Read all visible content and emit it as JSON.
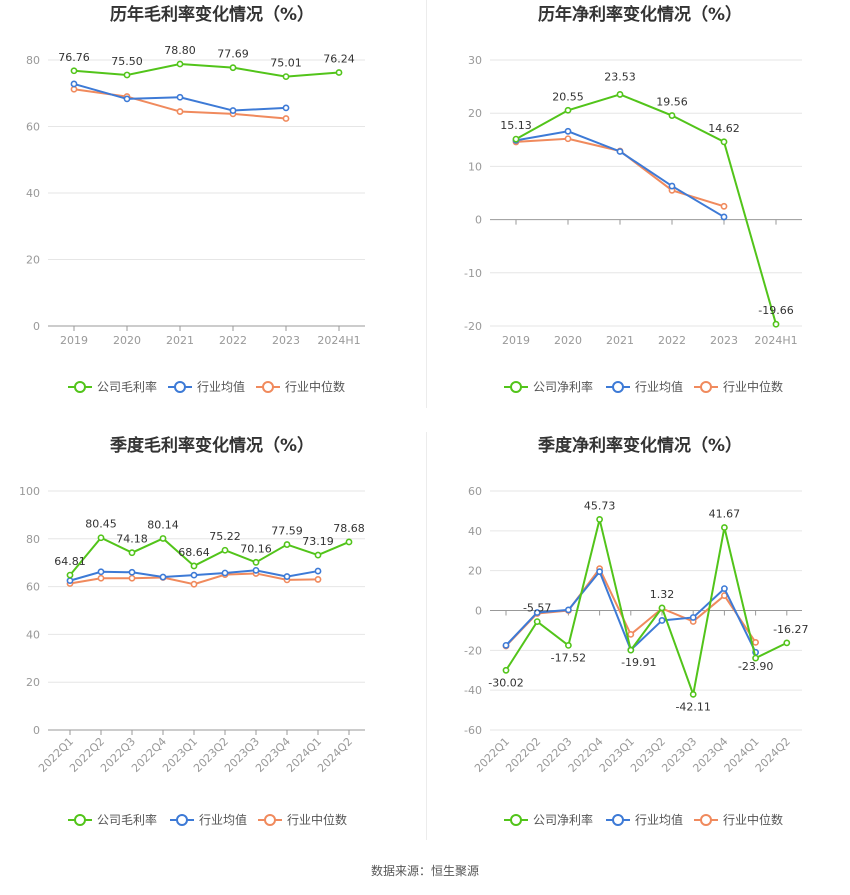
{
  "source": "数据来源：恒生聚源",
  "charts": [
    {
      "id": "annual-gross",
      "type": "line",
      "title": "历年毛利率变化情况（%）",
      "categories": [
        "2019",
        "2020",
        "2021",
        "2022",
        "2023",
        "2024H1"
      ],
      "ylim": [
        0,
        80
      ],
      "yticks": [
        0,
        20,
        40,
        60,
        80
      ],
      "rotate_x": false,
      "series": [
        {
          "name": "公司毛利率",
          "color": "#52c41a",
          "values": [
            76.76,
            75.5,
            78.8,
            77.69,
            75.01,
            76.24
          ],
          "labels": [
            "76.76",
            "75.50",
            "78.80",
            "77.69",
            "75.01",
            "76.24"
          ]
        },
        {
          "name": "行业均值",
          "color": "#3d7ad6",
          "values": [
            72.8,
            68.3,
            68.8,
            64.8,
            65.6,
            null
          ],
          "labels": []
        },
        {
          "name": "行业中位数",
          "color": "#f08a5d",
          "values": [
            71.2,
            69.0,
            64.5,
            63.8,
            62.4,
            null
          ],
          "labels": []
        }
      ]
    },
    {
      "id": "annual-net",
      "type": "line",
      "title": "历年净利率变化情况（%）",
      "categories": [
        "2019",
        "2020",
        "2021",
        "2022",
        "2023",
        "2024H1"
      ],
      "ylim": [
        -20,
        30
      ],
      "yticks": [
        -20,
        -10,
        0,
        10,
        20,
        30
      ],
      "rotate_x": false,
      "series": [
        {
          "name": "公司净利率",
          "color": "#52c41a",
          "values": [
            15.13,
            20.55,
            23.53,
            19.56,
            14.62,
            -19.66
          ],
          "labels": [
            "15.13",
            "20.55",
            "23.53",
            "19.56",
            "14.62",
            "-19.66"
          ]
        },
        {
          "name": "行业均值",
          "color": "#3d7ad6",
          "values": [
            14.9,
            16.6,
            12.8,
            6.3,
            0.5,
            null
          ],
          "labels": []
        },
        {
          "name": "行业中位数",
          "color": "#f08a5d",
          "values": [
            14.6,
            15.2,
            12.9,
            5.5,
            2.5,
            null
          ],
          "labels": []
        }
      ]
    },
    {
      "id": "quarter-gross",
      "type": "line",
      "title": "季度毛利率变化情况（%）",
      "categories": [
        "2022Q1",
        "2022Q2",
        "2022Q3",
        "2022Q4",
        "2023Q1",
        "2023Q2",
        "2023Q3",
        "2023Q4",
        "2024Q1",
        "2024Q2"
      ],
      "ylim": [
        0,
        100
      ],
      "yticks": [
        0,
        20,
        40,
        60,
        80,
        100
      ],
      "rotate_x": true,
      "series": [
        {
          "name": "公司毛利率",
          "color": "#52c41a",
          "values": [
            64.81,
            80.45,
            74.18,
            80.14,
            68.64,
            75.22,
            70.16,
            77.59,
            73.19,
            78.68
          ],
          "labels": [
            "64.81",
            "80.45",
            "74.18",
            "80.14",
            "68.64",
            "75.22",
            "70.16",
            "77.59",
            "73.19",
            "78.68"
          ]
        },
        {
          "name": "行业均值",
          "color": "#3d7ad6",
          "values": [
            62.5,
            66.2,
            66.0,
            64.0,
            64.8,
            65.7,
            66.8,
            64.2,
            66.5,
            null
          ],
          "labels": []
        },
        {
          "name": "行业中位数",
          "color": "#f08a5d",
          "values": [
            61.3,
            63.5,
            63.5,
            63.8,
            61.0,
            65.0,
            65.5,
            62.8,
            63.0,
            null
          ],
          "labels": []
        }
      ]
    },
    {
      "id": "quarter-net",
      "type": "line",
      "title": "季度净利率变化情况（%）",
      "categories": [
        "2022Q1",
        "2022Q2",
        "2022Q3",
        "2022Q4",
        "2023Q1",
        "2023Q2",
        "2023Q3",
        "2023Q4",
        "2024Q1",
        "2024Q2"
      ],
      "ylim": [
        -60,
        60
      ],
      "yticks": [
        -60,
        -40,
        -20,
        0,
        20,
        40,
        60
      ],
      "rotate_x": true,
      "series": [
        {
          "name": "公司净利率",
          "color": "#52c41a",
          "values": [
            -30.02,
            -5.57,
            -17.52,
            45.73,
            -19.91,
            1.32,
            -42.11,
            41.67,
            -23.9,
            -16.27
          ],
          "labels": [
            "-30.02",
            "-5.57",
            "-17.52",
            "45.73",
            "-19.91",
            "1.32",
            "-42.11",
            "41.67",
            "-23.90",
            "-16.27"
          ]
        },
        {
          "name": "行业均值",
          "color": "#3d7ad6",
          "values": [
            -17.5,
            -1.0,
            0.3,
            19.5,
            -19.8,
            -5.0,
            -3.5,
            11.0,
            -21.0,
            null
          ],
          "labels": []
        },
        {
          "name": "行业中位数",
          "color": "#f08a5d",
          "values": [
            -17.8,
            -1.5,
            0.0,
            21.0,
            -12.0,
            1.0,
            -5.5,
            7.5,
            -16.0,
            null
          ],
          "labels": []
        }
      ]
    }
  ]
}
